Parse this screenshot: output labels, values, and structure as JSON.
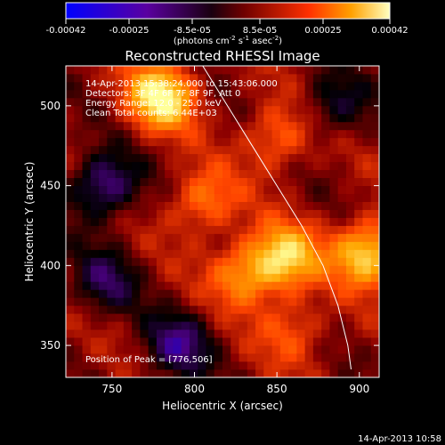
{
  "colorbar": {
    "ticks": [
      "-0.00042",
      "-0.00025",
      "-8.5e-05",
      "8.5e-05",
      "0.00025",
      "0.00042"
    ],
    "unit_main": "(photons cm",
    "unit_sup1": "-2",
    "unit_mid": " s",
    "unit_sup2": "-1",
    "unit_end": " asec",
    "unit_sup3": "-2",
    "unit_close": ")"
  },
  "info": {
    "time": "14-Apr-2013 15:38:24.000 to 15:43:06.000",
    "detectors": "Detectors: 3F 4F 6F 7F 8F 9F, Att 0",
    "energy": "Energy Range: 12.0 - 25.0 keV",
    "clean": "Clean     Total counts: 6.44E+03",
    "peak": "Position of Peak = [776,506]"
  },
  "footer": {
    "timestamp": "14-Apr-2013 10:58"
  },
  "chart_data": {
    "type": "heatmap",
    "title": "Reconstructed RHESSI Image",
    "xlabel": "Heliocentric X (arcsec)",
    "ylabel": "Heliocentric Y (arcsec)",
    "xlim": [
      722,
      912
    ],
    "ylim": [
      330,
      525
    ],
    "xticks": [
      750,
      800,
      850,
      900
    ],
    "yticks": [
      350,
      400,
      450,
      500
    ],
    "zlim": [
      -0.00042,
      0.00042
    ],
    "colormap": [
      "#0000ff",
      "#4b0082",
      "#000000",
      "#8b0000",
      "#ff4500",
      "#ffa500",
      "#ffff99"
    ],
    "peak": [
      776,
      506
    ],
    "limb_curve": [
      [
        805,
        525
      ],
      [
        820,
        500
      ],
      [
        835,
        475
      ],
      [
        850,
        450
      ],
      [
        865,
        425
      ],
      [
        878,
        400
      ],
      [
        887,
        375
      ],
      [
        893,
        350
      ],
      [
        895,
        335
      ]
    ],
    "sources": [
      {
        "x": 780,
        "y": 506,
        "amplitude": 0.00042
      },
      {
        "x": 905,
        "y": 408,
        "amplitude": 0.00038
      },
      {
        "x": 855,
        "y": 405,
        "amplitude": 0.00034
      },
      {
        "x": 830,
        "y": 395,
        "amplitude": 0.00025
      },
      {
        "x": 805,
        "y": 440,
        "amplitude": 0.00022
      },
      {
        "x": 850,
        "y": 480,
        "amplitude": 0.0002
      },
      {
        "x": 860,
        "y": 360,
        "amplitude": 0.00016
      },
      {
        "x": 745,
        "y": 450,
        "amplitude": -0.0003
      },
      {
        "x": 745,
        "y": 390,
        "amplitude": -0.0002
      },
      {
        "x": 790,
        "y": 350,
        "amplitude": -0.00025
      },
      {
        "x": 885,
        "y": 500,
        "amplitude": -0.00018
      }
    ]
  }
}
